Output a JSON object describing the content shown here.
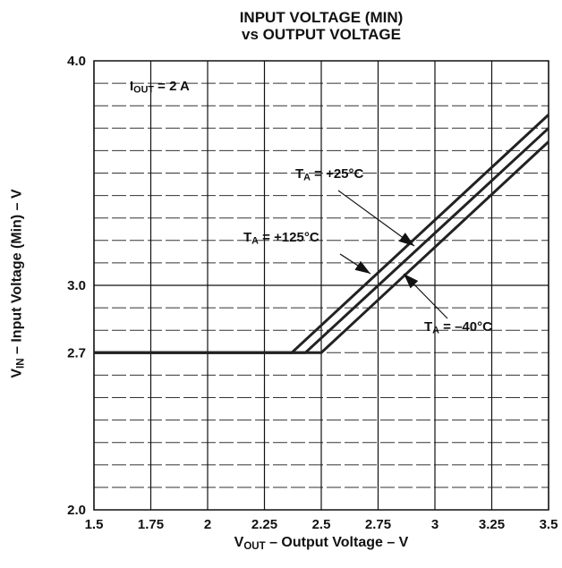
{
  "chart_data": {
    "type": "line",
    "title_line1": "INPUT VOLTAGE (MIN)",
    "title_line2": "vs OUTPUT VOLTAGE",
    "xlabel": {
      "main": "V",
      "sub": "OUT",
      "rest": " – Output Voltage – V"
    },
    "ylabel": {
      "main": "V",
      "sub": "IN",
      "rest": " – Input Voltage (Min) – V"
    },
    "xlim": [
      1.5,
      3.5
    ],
    "ylim": [
      2.0,
      4.0
    ],
    "x_ticks": [
      "1.5",
      "1.75",
      "2",
      "2.25",
      "2.5",
      "2.75",
      "3",
      "3.25",
      "3.5"
    ],
    "y_ticks": [
      "4.0",
      "3.0",
      "2.7",
      "2.0"
    ],
    "grid": "dashed minor gridlines; solid major lines",
    "condition": {
      "main": "I",
      "sub": "OUT",
      "rest": " = 2 A"
    },
    "series": [
      {
        "name": "TA = +125°C",
        "x": [
          1.5,
          2.37,
          3.5
        ],
        "y": [
          2.7,
          2.7,
          3.76
        ]
      },
      {
        "name": "TA = +25°C",
        "x": [
          1.5,
          2.43,
          3.5
        ],
        "y": [
          2.7,
          2.7,
          3.7
        ]
      },
      {
        "name": "TA = -40°C",
        "x": [
          1.5,
          2.5,
          3.5
        ],
        "y": [
          2.7,
          2.7,
          3.64
        ]
      }
    ],
    "annotations": [
      {
        "main": "T",
        "sub": "A",
        "rest": " = +25°C"
      },
      {
        "main": "T",
        "sub": "A",
        "rest": " = +125°C"
      },
      {
        "main": "T",
        "sub": "A",
        "rest": " = –40°C"
      }
    ]
  }
}
